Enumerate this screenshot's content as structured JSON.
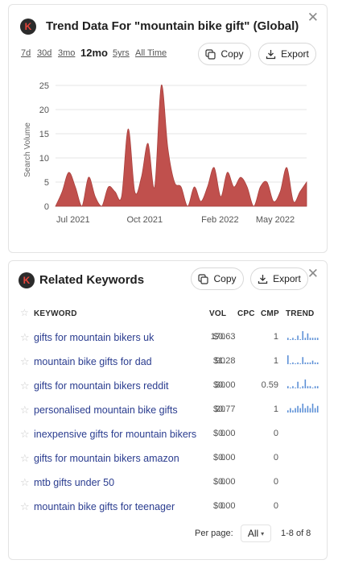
{
  "trend_card": {
    "title": "Trend Data For \"mountain bike gift\" (Global)",
    "logo_letter": "K",
    "close_label": "✕",
    "timeframes": [
      {
        "label": "7d",
        "active": false
      },
      {
        "label": "30d",
        "active": false
      },
      {
        "label": "3mo",
        "active": false
      },
      {
        "label": "12mo",
        "active": true
      },
      {
        "label": "5yrs",
        "active": false
      },
      {
        "label": "All Time",
        "active": false
      }
    ],
    "copy_label": "Copy",
    "export_label": "Export",
    "chart_color": "#c0504d"
  },
  "chart_data": {
    "type": "area",
    "title": "",
    "xlabel": "",
    "ylabel": "Search Volume",
    "ylim": [
      0,
      25
    ],
    "yticks": [
      0,
      5,
      10,
      15,
      20,
      25
    ],
    "xtick_labels": [
      "Jul 2021",
      "Oct 2021",
      "Feb 2022",
      "May 2022"
    ],
    "grid": true,
    "series": [
      {
        "values": [
          0,
          3,
          7,
          4,
          0,
          6,
          2,
          0,
          4,
          3,
          2,
          16,
          3,
          6,
          13,
          4,
          25,
          12,
          5,
          4,
          0,
          4,
          1,
          4,
          8,
          2,
          7,
          4,
          6,
          4,
          0,
          4,
          5,
          1,
          3,
          8,
          1,
          3,
          5
        ]
      }
    ]
  },
  "related_card": {
    "title": "Related Keywords",
    "logo_letter": "K",
    "close_label": "✕",
    "copy_label": "Copy",
    "export_label": "Export",
    "columns": {
      "keyword": "KEYWORD",
      "vol": "VOL",
      "cpc": "CPC",
      "cmp": "CMP",
      "trend": "TREND"
    },
    "rows": [
      {
        "keyword": "gifts for mountain bikers uk",
        "vol": "170",
        "cpc": "$0.63",
        "cmp": "1",
        "trend": [
          1,
          0,
          1,
          0,
          2,
          0,
          4,
          1,
          3,
          1,
          1,
          1,
          1
        ]
      },
      {
        "keyword": "mountain bike gifts for dad",
        "vol": "90",
        "cpc": "$1.28",
        "cmp": "1",
        "trend": [
          5,
          0,
          1,
          0,
          1,
          0,
          4,
          1,
          1,
          1,
          2,
          1,
          1
        ]
      },
      {
        "keyword": "gifts for mountain bikers reddit",
        "vol": "30",
        "cpc": "$0.00",
        "cmp": "0.59",
        "trend": [
          1,
          0,
          1,
          0,
          3,
          0,
          1,
          4,
          1,
          1,
          0,
          1,
          1
        ]
      },
      {
        "keyword": "personalised mountain bike gifts",
        "vol": "20",
        "cpc": "$0.77",
        "cmp": "1",
        "trend": [
          1,
          2,
          1,
          2,
          3,
          2,
          4,
          2,
          3,
          2,
          4,
          2,
          3
        ]
      },
      {
        "keyword": "inexpensive gifts for mountain bikers",
        "vol": "0",
        "cpc": "$0.00",
        "cmp": "0",
        "trend": []
      },
      {
        "keyword": "gifts for mountain bikers amazon",
        "vol": "0",
        "cpc": "$0.00",
        "cmp": "0",
        "trend": []
      },
      {
        "keyword": "mtb gifts under 50",
        "vol": "0",
        "cpc": "$0.00",
        "cmp": "0",
        "trend": []
      },
      {
        "keyword": "mountain bike gifts for teenager",
        "vol": "0",
        "cpc": "$0.00",
        "cmp": "0",
        "trend": []
      }
    ],
    "per_page_label": "Per page:",
    "per_page_value": "All",
    "range_label": "1-8 of 8",
    "trend_color": "#5b8fd6",
    "star_icon": "☆"
  }
}
